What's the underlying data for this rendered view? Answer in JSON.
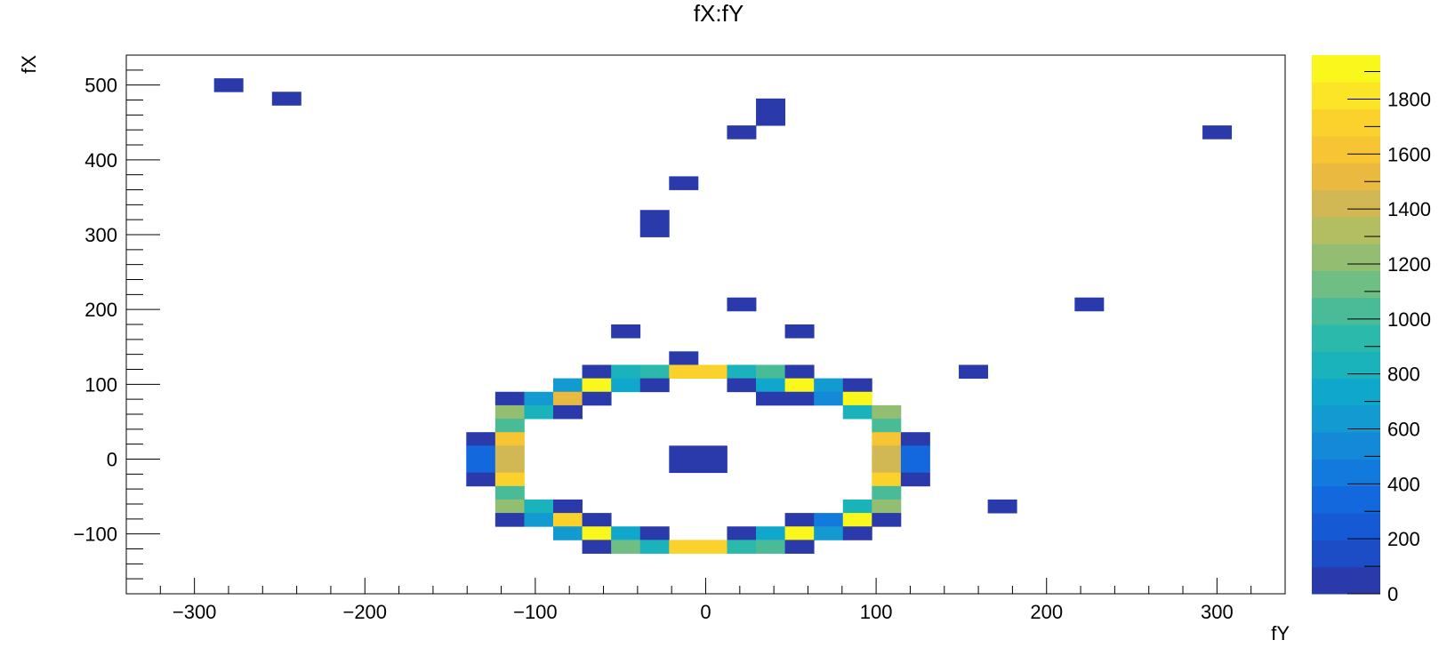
{
  "chart_data": {
    "type": "heatmap",
    "title": "fX:fY",
    "xlabel": "fY",
    "ylabel": "fX",
    "xlim": [
      -340,
      340
    ],
    "ylim": [
      -180,
      540
    ],
    "xticks": [
      -300,
      -200,
      -100,
      0,
      100,
      200,
      300
    ],
    "yticks": [
      -100,
      0,
      100,
      200,
      300,
      400,
      500
    ],
    "xtick_labels": [
      "−300",
      "−200",
      "−100",
      "0",
      "100",
      "200",
      "300"
    ],
    "ytick_labels": [
      "−100",
      "0",
      "100",
      "200",
      "300",
      "400",
      "500"
    ],
    "zlim": [
      0,
      1960
    ],
    "zticks": [
      0,
      200,
      400,
      600,
      800,
      1000,
      1200,
      1400,
      1600,
      1800
    ],
    "ztick_labels": [
      "0",
      "200",
      "400",
      "600",
      "800",
      "1000",
      "1200",
      "1400",
      "1600",
      "1800"
    ],
    "bin_width_x": 17,
    "bin_height_y": 18,
    "cells": [
      {
        "x": -280,
        "y": 500,
        "z": 40
      },
      {
        "x": -246,
        "y": 482,
        "z": 40
      },
      {
        "x": 38,
        "y": 473,
        "z": 40
      },
      {
        "x": 38,
        "y": 455,
        "z": 40
      },
      {
        "x": 21,
        "y": 437,
        "z": 40
      },
      {
        "x": 300,
        "y": 437,
        "z": 40
      },
      {
        "x": -13,
        "y": 369,
        "z": 40
      },
      {
        "x": -30,
        "y": 324,
        "z": 40
      },
      {
        "x": -30,
        "y": 306,
        "z": 40
      },
      {
        "x": 21,
        "y": 207,
        "z": 40
      },
      {
        "x": 225,
        "y": 207,
        "z": 40
      },
      {
        "x": -47,
        "y": 171,
        "z": 40
      },
      {
        "x": 55,
        "y": 171,
        "z": 40
      },
      {
        "x": -13,
        "y": 135,
        "z": 40
      },
      {
        "x": 157,
        "y": 117,
        "z": 40
      },
      {
        "x": 174,
        "y": -63,
        "z": 40
      },
      {
        "x": -64,
        "y": 117,
        "z": 40
      },
      {
        "x": -47,
        "y": 117,
        "z": 880
      },
      {
        "x": -30,
        "y": 117,
        "z": 900
      },
      {
        "x": -13,
        "y": 117,
        "z": 1680
      },
      {
        "x": 4,
        "y": 117,
        "z": 1760
      },
      {
        "x": 21,
        "y": 117,
        "z": 820
      },
      {
        "x": 38,
        "y": 117,
        "z": 1060
      },
      {
        "x": 55,
        "y": 117,
        "z": 40
      },
      {
        "x": -81,
        "y": 99,
        "z": 640
      },
      {
        "x": -64,
        "y": 99,
        "z": 1940
      },
      {
        "x": -47,
        "y": 99,
        "z": 780
      },
      {
        "x": -30,
        "y": 99,
        "z": 40
      },
      {
        "x": 21,
        "y": 99,
        "z": 40
      },
      {
        "x": 38,
        "y": 99,
        "z": 720
      },
      {
        "x": 55,
        "y": 99,
        "z": 1940
      },
      {
        "x": 72,
        "y": 99,
        "z": 640
      },
      {
        "x": 89,
        "y": 99,
        "z": 40
      },
      {
        "x": -115,
        "y": 81,
        "z": 40
      },
      {
        "x": -98,
        "y": 81,
        "z": 620
      },
      {
        "x": -81,
        "y": 81,
        "z": 1540
      },
      {
        "x": -64,
        "y": 81,
        "z": 40
      },
      {
        "x": 38,
        "y": 81,
        "z": 40
      },
      {
        "x": 55,
        "y": 81,
        "z": 40
      },
      {
        "x": 72,
        "y": 81,
        "z": 540
      },
      {
        "x": 89,
        "y": 81,
        "z": 1900
      },
      {
        "x": -115,
        "y": 63,
        "z": 1200
      },
      {
        "x": -98,
        "y": 63,
        "z": 860
      },
      {
        "x": -81,
        "y": 63,
        "z": 40
      },
      {
        "x": 89,
        "y": 63,
        "z": 840
      },
      {
        "x": 106,
        "y": 63,
        "z": 1240
      },
      {
        "x": -115,
        "y": 45,
        "z": 980
      },
      {
        "x": 106,
        "y": 45,
        "z": 980
      },
      {
        "x": -132,
        "y": 27,
        "z": 40
      },
      {
        "x": -115,
        "y": 27,
        "z": 1640
      },
      {
        "x": 106,
        "y": 27,
        "z": 1640
      },
      {
        "x": 123,
        "y": 27,
        "z": 40
      },
      {
        "x": -132,
        "y": 9,
        "z": 360
      },
      {
        "x": -115,
        "y": 9,
        "z": 1380
      },
      {
        "x": -13,
        "y": 9,
        "z": 40
      },
      {
        "x": 4,
        "y": 9,
        "z": 40
      },
      {
        "x": 106,
        "y": 9,
        "z": 1380
      },
      {
        "x": 123,
        "y": 9,
        "z": 360
      },
      {
        "x": -132,
        "y": -9,
        "z": 360
      },
      {
        "x": -115,
        "y": -9,
        "z": 1380
      },
      {
        "x": -13,
        "y": -9,
        "z": 40
      },
      {
        "x": 4,
        "y": -9,
        "z": 40
      },
      {
        "x": 106,
        "y": -9,
        "z": 1380
      },
      {
        "x": 123,
        "y": -9,
        "z": 360
      },
      {
        "x": -132,
        "y": -27,
        "z": 40
      },
      {
        "x": -115,
        "y": -27,
        "z": 1760
      },
      {
        "x": 106,
        "y": -27,
        "z": 1760
      },
      {
        "x": 123,
        "y": -27,
        "z": 40
      },
      {
        "x": -115,
        "y": -45,
        "z": 980
      },
      {
        "x": 106,
        "y": -45,
        "z": 980
      },
      {
        "x": -115,
        "y": -63,
        "z": 1200
      },
      {
        "x": -98,
        "y": -63,
        "z": 860
      },
      {
        "x": -81,
        "y": -63,
        "z": 40
      },
      {
        "x": 89,
        "y": -63,
        "z": 860
      },
      {
        "x": 106,
        "y": -63,
        "z": 1200
      },
      {
        "x": -115,
        "y": -81,
        "z": 40
      },
      {
        "x": -98,
        "y": -81,
        "z": 620
      },
      {
        "x": -81,
        "y": -81,
        "z": 1680
      },
      {
        "x": -64,
        "y": -81,
        "z": 40
      },
      {
        "x": 55,
        "y": -81,
        "z": 40
      },
      {
        "x": 72,
        "y": -81,
        "z": 440
      },
      {
        "x": 89,
        "y": -81,
        "z": 1900
      },
      {
        "x": 106,
        "y": -81,
        "z": 40
      },
      {
        "x": -81,
        "y": -99,
        "z": 640
      },
      {
        "x": -64,
        "y": -99,
        "z": 1940
      },
      {
        "x": -47,
        "y": -99,
        "z": 780
      },
      {
        "x": -30,
        "y": -99,
        "z": 40
      },
      {
        "x": 21,
        "y": -99,
        "z": 40
      },
      {
        "x": 38,
        "y": -99,
        "z": 720
      },
      {
        "x": 55,
        "y": -99,
        "z": 1940
      },
      {
        "x": 72,
        "y": -99,
        "z": 640
      },
      {
        "x": 89,
        "y": -99,
        "z": 40
      },
      {
        "x": -64,
        "y": -117,
        "z": 40
      },
      {
        "x": -47,
        "y": -117,
        "z": 1100
      },
      {
        "x": -30,
        "y": -117,
        "z": 860
      },
      {
        "x": -13,
        "y": -117,
        "z": 1760
      },
      {
        "x": 4,
        "y": -117,
        "z": 1760
      },
      {
        "x": 21,
        "y": -117,
        "z": 960
      },
      {
        "x": 38,
        "y": -117,
        "z": 1060
      },
      {
        "x": 55,
        "y": -117,
        "z": 40
      }
    ],
    "palette": [
      "#2a3aab",
      "#1d4cc7",
      "#1659d5",
      "#1268dc",
      "#127add",
      "#1489d7",
      "#129ad1",
      "#0fa8cc",
      "#1ab3bc",
      "#2bb9ab",
      "#4abb97",
      "#6fbe84",
      "#93be72",
      "#b3bd61",
      "#d1b854",
      "#e9b940",
      "#f7c434",
      "#fbd22c",
      "#fce426",
      "#f9f71c"
    ],
    "grid": false,
    "legend": "colorbar-right"
  }
}
